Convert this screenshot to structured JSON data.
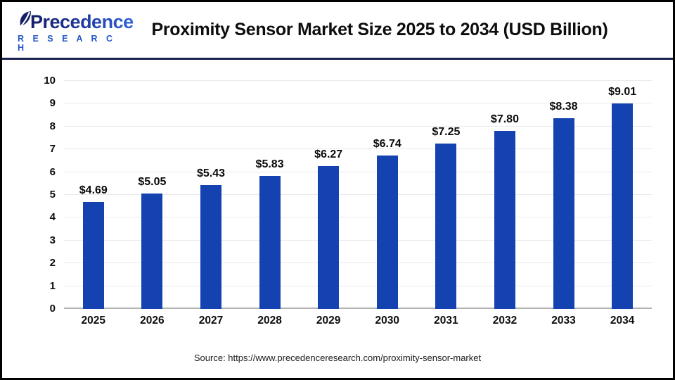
{
  "header": {
    "logo": {
      "brand_top": "Precedence",
      "brand_bottom": "R E S E A R C H"
    },
    "title": "Proximity Sensor Market Size 2025 to 2034 (USD Billion)"
  },
  "chart_data": {
    "type": "bar",
    "title": "Proximity Sensor Market Size 2025 to 2034 (USD Billion)",
    "categories": [
      "2025",
      "2026",
      "2027",
      "2028",
      "2029",
      "2030",
      "2031",
      "2032",
      "2033",
      "2034"
    ],
    "values": [
      4.69,
      5.05,
      5.43,
      5.83,
      6.27,
      6.74,
      7.25,
      7.8,
      8.38,
      9.01
    ],
    "value_labels": [
      "$4.69",
      "$5.05",
      "$5.43",
      "$5.83",
      "$6.27",
      "$6.74",
      "$7.25",
      "$7.80",
      "$8.38",
      "$9.01"
    ],
    "xlabel": "",
    "ylabel": "",
    "ylim": [
      0,
      10
    ],
    "yticks": [
      0,
      1,
      2,
      3,
      4,
      5,
      6,
      7,
      8,
      9,
      10
    ],
    "grid": "horizontal",
    "legend_position": "none",
    "bar_color": "#1442b0"
  },
  "footer": {
    "source": "Source: https://www.precedenceresearch.com/proximity-sensor-market"
  },
  "colors": {
    "bar": "#1442b0",
    "separator": "#1b2150",
    "gridline": "#e9e9e9",
    "baseline": "#b3b3b3",
    "brand_navy": "#141f66",
    "brand_blue": "#2e62d9",
    "research_blue": "#2457c5",
    "frame_border": "#000000"
  }
}
